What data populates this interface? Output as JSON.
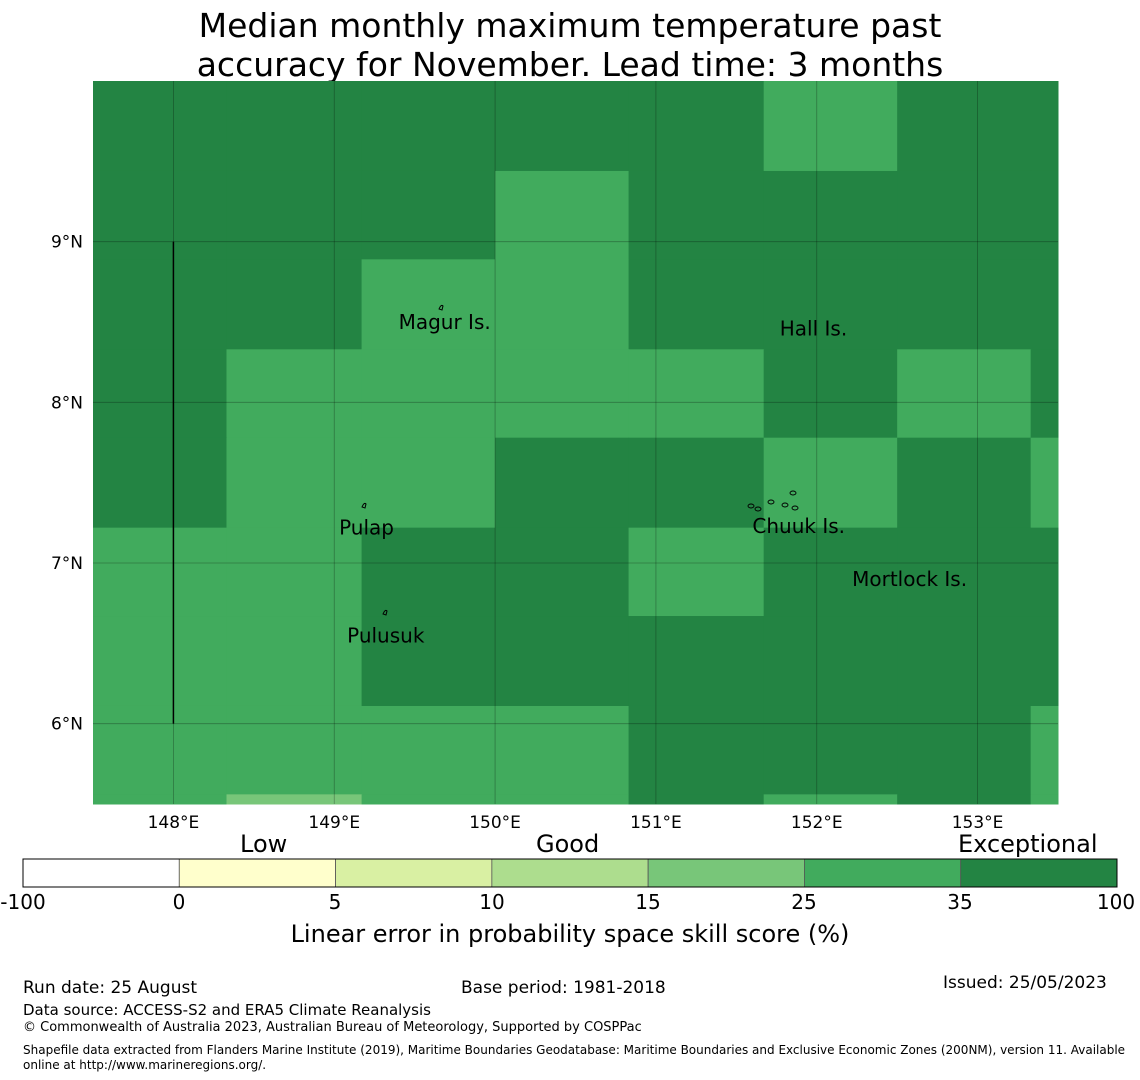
{
  "title_line1": "Median monthly maximum temperature past",
  "title_line2": "accuracy for November. Lead time: 3 months",
  "map": {
    "lon_range": [
      147.5,
      153.5
    ],
    "lat_range": [
      5.5,
      10.0
    ],
    "x_ticks": [
      {
        "value": 148,
        "label": "148°E"
      },
      {
        "value": 149,
        "label": "149°E"
      },
      {
        "value": 150,
        "label": "150°E"
      },
      {
        "value": 151,
        "label": "151°E"
      },
      {
        "value": 152,
        "label": "152°E"
      },
      {
        "value": 153,
        "label": "153°E"
      }
    ],
    "y_ticks": [
      {
        "value": 9,
        "label": "9°N"
      },
      {
        "value": 8,
        "label": "8°N"
      },
      {
        "value": 7,
        "label": "7°N"
      },
      {
        "value": 6,
        "label": "6°N"
      }
    ],
    "grid_lon_edges": [
      147.5,
      148.33,
      149.17,
      150.0,
      150.83,
      151.67,
      152.5,
      153.33,
      153.5
    ],
    "grid_lat_edges": [
      10.0,
      9.44,
      8.89,
      8.33,
      7.78,
      7.22,
      6.67,
      6.11,
      5.56,
      5.5
    ],
    "cell_classes": [
      [
        35,
        35,
        35,
        35,
        35,
        25,
        35,
        35
      ],
      [
        35,
        35,
        35,
        25,
        35,
        35,
        35,
        35
      ],
      [
        35,
        35,
        25,
        25,
        35,
        35,
        35,
        35
      ],
      [
        35,
        25,
        25,
        25,
        25,
        35,
        25,
        35
      ],
      [
        35,
        25,
        25,
        35,
        35,
        25,
        35,
        25
      ],
      [
        25,
        25,
        35,
        35,
        25,
        35,
        35,
        35
      ],
      [
        25,
        25,
        35,
        35,
        35,
        35,
        35,
        35
      ],
      [
        25,
        25,
        25,
        25,
        35,
        35,
        35,
        25
      ],
      [
        25,
        15,
        25,
        25,
        35,
        25,
        35,
        25
      ]
    ],
    "boundary_line": {
      "lon": 148.0,
      "lat_from": 6.0,
      "lat_to": 9.0
    },
    "places": [
      {
        "name": "Magur Is.",
        "lon": 149.4,
        "lat": 8.5
      },
      {
        "name": "Hall Is.",
        "lon": 151.77,
        "lat": 8.46
      },
      {
        "name": "Pulap",
        "lon": 149.03,
        "lat": 7.22
      },
      {
        "name": "Chuuk Is.",
        "lon": 151.6,
        "lat": 7.23
      },
      {
        "name": "Mortlock Is.",
        "lon": 152.22,
        "lat": 6.9
      },
      {
        "name": "Pulusuk",
        "lon": 149.08,
        "lat": 6.55
      }
    ]
  },
  "colorbar": {
    "categories": [
      "Low",
      "Good",
      "Exceptional"
    ],
    "bins": [
      {
        "from": -100,
        "to": 0,
        "color": "#ffffff"
      },
      {
        "from": 0,
        "to": 5,
        "color": "#ffffcc"
      },
      {
        "from": 5,
        "to": 10,
        "color": "#d9f0a3"
      },
      {
        "from": 10,
        "to": 15,
        "color": "#addd8e"
      },
      {
        "from": 15,
        "to": 25,
        "color": "#78c679"
      },
      {
        "from": 25,
        "to": 35,
        "color": "#41ab5d"
      },
      {
        "from": 35,
        "to": 100,
        "color": "#238443"
      }
    ],
    "tick_labels": [
      "-100",
      "0",
      "5",
      "10",
      "15",
      "25",
      "35",
      "100"
    ],
    "label": "Linear error in probability space skill score (%)"
  },
  "footer": {
    "run_date": "Run date: 25 August",
    "base_period": "Base period: 1981-2018",
    "issued": "Issued: 25/05/2023",
    "data_source": "Data source: ACCESS-S2 and ERA5 Climate Reanalysis",
    "copyright": "© Commonwealth of Australia 2023, Australian Bureau of Meteorology, Supported by COSPPac",
    "shapefile_line1": "Shapefile data extracted from Flanders Marine Institute (2019), Maritime Boundaries Geodatabase: Maritime Boundaries and Exclusive Economic Zones (200NM), version 11. Available",
    "shapefile_line2": "online at http://www.marineregions.org/."
  }
}
